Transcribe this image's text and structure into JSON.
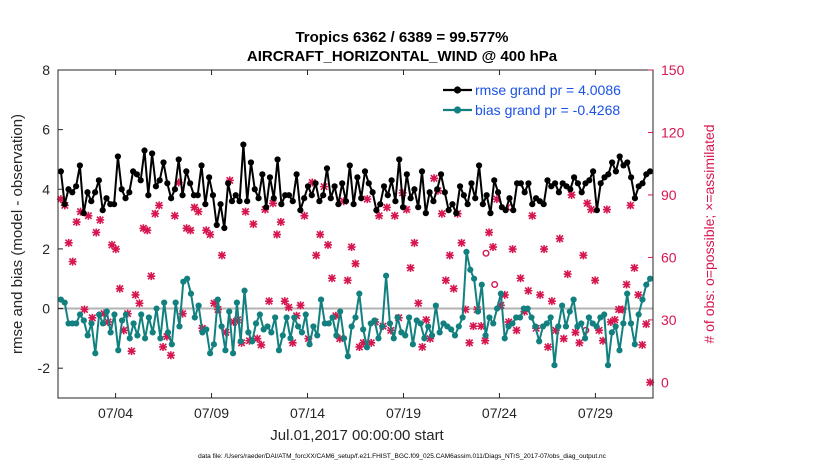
{
  "chart_data": {
    "type": "line",
    "title_line1": "Tropics 6362 / 6389 = 99.577%",
    "title_line2": "AIRCRAFT_HORIZONTAL_WIND @ 400 hPa",
    "xlabel": "Jul.01,2017 00:00:00 start",
    "ylabel_left": "rmse and bias (model - observation)",
    "ylabel_right": "# of obs: o=possible; ×=assimilated",
    "xlim": [
      0,
      31
    ],
    "ylim_left": [
      -3,
      8
    ],
    "ylim_right": [
      -7.5,
      150
    ],
    "x_ticks": [
      3,
      8,
      13,
      18,
      23,
      28
    ],
    "x_tick_labels": [
      "07/04",
      "07/09",
      "07/14",
      "07/19",
      "07/24",
      "07/29"
    ],
    "y_ticks_left": [
      -2,
      0,
      2,
      4,
      6,
      8
    ],
    "y_ticks_right": [
      0,
      30,
      60,
      90,
      120,
      150
    ],
    "legend": {
      "rmse_label": "rmse grand pr = 4.0086",
      "bias_label": "bias grand pr = -0.4268"
    },
    "footnote": "data file: /Users/raeder/DAI/ATM_forcXX/CAM6_setup/f.e21.FHIST_BGC.f09_025.CAM6assim.011/Diags_NTrS_2017-07/obs_diag_output.nc",
    "series": [
      {
        "name": "rmse",
        "color": "#000000",
        "values": [
          4.6,
          3.5,
          4.0,
          3.9,
          4.1,
          4.8,
          3.2,
          3.9,
          3.6,
          3.9,
          4.3,
          3.3,
          3.7,
          3.5,
          3.5,
          5.1,
          4.0,
          3.7,
          3.9,
          4.6,
          4.5,
          4.3,
          5.3,
          3.8,
          5.2,
          4.1,
          4.3,
          4.9,
          4.2,
          3.7,
          4.0,
          5.0,
          3.8,
          4.6,
          4.2,
          3.8,
          3.8,
          4.8,
          3.5,
          4.4,
          3.8,
          2.8,
          3.5,
          2.7,
          4.2,
          3.6,
          3.8,
          3.6,
          5.5,
          3.6,
          4.9,
          4.0,
          3.7,
          4.5,
          3.4,
          4.4,
          3.7,
          5.0,
          3.5,
          3.8,
          3.8,
          3.6,
          4.5,
          3.3,
          3.7,
          4.1,
          3.8,
          4.2,
          3.6,
          3.8,
          4.7,
          3.7,
          4.1,
          3.5,
          4.2,
          3.6,
          4.8,
          3.5,
          4.4,
          3.7,
          4.6,
          4.2,
          3.9,
          3.3,
          3.5,
          4.1,
          3.8,
          4.3,
          3.6,
          5.0,
          3.4,
          4.5,
          3.7,
          4.0,
          3.4,
          4.6,
          3.2,
          3.9,
          3.6,
          4.0,
          4.5,
          3.9,
          3.3,
          3.5,
          3.2,
          4.1,
          3.8,
          3.5,
          4.2,
          3.7,
          4.8,
          3.5,
          3.8,
          3.2,
          4.3,
          3.9,
          3.4,
          3.3,
          3.7,
          3.3,
          4.2,
          4.2,
          3.9,
          4.2,
          3.5,
          3.7,
          3.6,
          3.5,
          4.3,
          4.1,
          4.2,
          3.9,
          4.2,
          4.1,
          4.0,
          4.4,
          4.2,
          3.9,
          4.2,
          4.3,
          4.6,
          3.3,
          4.2,
          4.4,
          4.5,
          4.9,
          4.6,
          5.1,
          4.8,
          4.9,
          4.4,
          3.7,
          4.1,
          4.2,
          4.5,
          4.6
        ]
      },
      {
        "name": "bias",
        "color": "#138080",
        "values": [
          0.3,
          0.2,
          -0.5,
          -0.5,
          -0.5,
          -0.2,
          -0.4,
          -0.9,
          -0.5,
          -1.5,
          -0.2,
          -0.5,
          -0.1,
          -0.8,
          -0.2,
          -1.4,
          -0.4,
          -0.2,
          -1.0,
          -0.5,
          -0.9,
          -0.2,
          -1.0,
          -0.3,
          -0.8,
          0.0,
          -1.0,
          0.2,
          -0.8,
          -1.2,
          0.2,
          -0.6,
          0.9,
          1.0,
          0.5,
          -0.3,
          0.1,
          -0.8,
          -0.7,
          -1.5,
          -1.2,
          0.3,
          -0.6,
          -1.4,
          -0.1,
          -1.5,
          0.2,
          -1.1,
          0.6,
          -0.8,
          -1.1,
          -0.5,
          -0.2,
          -0.7,
          -0.6,
          -0.8,
          -0.3,
          -1.4,
          -0.9,
          -0.3,
          -1.0,
          -0.3,
          -0.6,
          -0.8,
          -0.2,
          -1.2,
          -0.6,
          -0.9,
          0.3,
          -0.5,
          -0.5,
          -0.3,
          -0.9,
          -0.1,
          -1.0,
          -1.6,
          -0.6,
          -0.3,
          0.5,
          -0.7,
          -1.3,
          -0.5,
          -0.4,
          -1.0,
          -0.6,
          1.1,
          -0.5,
          -1.0,
          -0.3,
          -0.8,
          -0.9,
          -0.3,
          -1.2,
          -0.4,
          -0.5,
          -1.0,
          -0.6,
          -0.9,
          0.1,
          -0.8,
          -0.5,
          -0.6,
          -0.7,
          -0.9,
          -0.6,
          -0.3,
          1.9,
          1.3,
          1.0,
          -0.1,
          0.8,
          -0.9,
          -0.3,
          -0.5,
          0.0,
          0.5,
          -1.0,
          -0.6,
          -0.5,
          -0.3,
          -0.3,
          0.0,
          0.0,
          -0.3,
          -0.6,
          -1.1,
          -0.6,
          -0.5,
          -0.3,
          -1.9,
          -0.6,
          0.1,
          -0.6,
          -0.1,
          0.3,
          -0.6,
          -0.5,
          -1.0,
          -0.3,
          -0.5,
          -0.6,
          -0.3,
          -0.2,
          -1.9,
          -0.8,
          -0.6,
          -1.4,
          -0.5,
          0.5,
          -0.5,
          -1.2,
          -0.2,
          0.3,
          0.8,
          1.0
        ]
      },
      {
        "name": "obs_assimilated",
        "color": "#d6174f",
        "values": [
          88,
          85,
          67,
          58,
          77,
          82,
          35,
          80,
          31,
          72,
          78,
          33,
          29,
          66,
          64,
          45,
          25,
          33,
          15,
          42,
          38,
          74,
          73,
          51,
          81,
          85,
          17,
          22,
          13,
          80,
          96,
          33,
          74,
          73,
          84,
          82,
          26,
          73,
          71,
          38,
          35,
          61,
          24,
          97,
          29,
          30,
          19,
          82,
          20,
          76,
          21,
          18,
          83,
          39,
          86,
          71,
          77,
          39,
          36,
          19,
          32,
          37,
          80,
          21,
          96,
          61,
          71,
          94,
          66,
          50,
          32,
          21,
          87,
          49,
          65,
          57,
          17,
          19,
          88,
          19,
          29,
          80,
          27,
          84,
          25,
          80,
          31,
          91,
          83,
          55,
          67,
          38,
          17,
          30,
          21,
          98,
          92,
          81,
          49,
          61,
          45,
          81,
          67,
          35,
          19,
          27,
          35,
          27,
          20,
          72,
          65,
          88,
          37,
          42,
          29,
          64,
          25,
          50,
          34,
          44,
          80,
          26,
          42,
          64,
          17,
          39,
          25,
          69,
          21,
          52,
          90,
          24,
          19,
          61,
          86,
          83,
          49,
          25,
          20,
          83,
          29,
          30,
          35,
          35,
          47,
          85,
          55,
          42,
          18,
          28,
          0
        ]
      },
      {
        "name": "obs_possible_markers",
        "color": "#d6174f",
        "x": [
          22.3,
          22.75,
          23.6,
          27.5
        ],
        "values": [
          62,
          47,
          84,
          25
        ]
      }
    ]
  }
}
